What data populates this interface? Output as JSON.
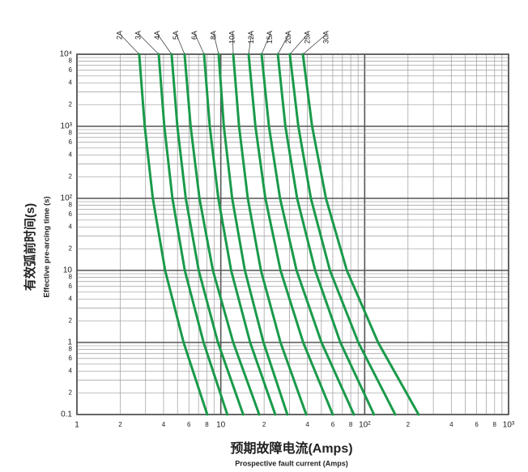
{
  "chart_data": {
    "type": "line",
    "x_label": "预期故障电流(Amps)",
    "x_label_en": "Prospective fault current (Amps)",
    "y_label": "有效弧前时间(s)",
    "y_label_en": "Effective pre-arcing time (s)",
    "log_x": true,
    "log_y": true,
    "grid": true,
    "xlim": [
      1,
      1000
    ],
    "ylim": [
      0.1,
      10000
    ],
    "xticks": [
      1,
      2,
      4,
      6,
      8,
      10,
      {
        "value": 20,
        "label": "2"
      },
      {
        "value": 40,
        "label": "4"
      },
      {
        "value": 60,
        "label": "6"
      },
      {
        "value": 80,
        "label": "8"
      },
      {
        "value": 100,
        "label": "10²"
      },
      {
        "value": 200,
        "label": "2"
      },
      {
        "value": 400,
        "label": "4"
      },
      {
        "value": 600,
        "label": "6"
      },
      {
        "value": 800,
        "label": "8"
      },
      {
        "value": 1000,
        "label": "10³"
      }
    ],
    "xminor": [
      3,
      5,
      7,
      9,
      30,
      50,
      70,
      90,
      300,
      500,
      700,
      900
    ],
    "yticks": [
      0.1,
      {
        "value": 0.2,
        "label": "2"
      },
      {
        "value": 0.4,
        "label": "4"
      },
      {
        "value": 0.6,
        "label": "6"
      },
      {
        "value": 0.8,
        "label": "8"
      },
      1,
      2,
      4,
      6,
      8,
      10,
      {
        "value": 20,
        "label": "2"
      },
      {
        "value": 40,
        "label": "4"
      },
      {
        "value": 60,
        "label": "6"
      },
      {
        "value": 80,
        "label": "8"
      },
      {
        "value": 100,
        "label": "10²"
      },
      {
        "value": 200,
        "label": "2"
      },
      {
        "value": 400,
        "label": "4"
      },
      {
        "value": 600,
        "label": "6"
      },
      {
        "value": 800,
        "label": "8"
      },
      {
        "value": 1000,
        "label": "10³"
      },
      {
        "value": 2000,
        "label": "2"
      },
      {
        "value": 4000,
        "label": "4"
      },
      {
        "value": 6000,
        "label": "6"
      },
      {
        "value": 8000,
        "label": "8"
      },
      {
        "value": 10000,
        "label": "10⁴"
      }
    ],
    "yminor": [
      0.3,
      0.5,
      0.7,
      0.9,
      3,
      5,
      7,
      9,
      30,
      50,
      70,
      90,
      300,
      500,
      700,
      900,
      3000,
      5000,
      7000,
      9000
    ],
    "series": [
      {
        "name": "2A",
        "color": "#1a9a4a",
        "x": [
          2.71,
          2.96,
          3.37,
          4.1,
          5.51,
          8.05
        ],
        "values": [
          10000,
          1000,
          100,
          10,
          1,
          0.1
        ]
      },
      {
        "name": "3A",
        "color": "#1a9a4a",
        "x": [
          3.7,
          4.05,
          4.61,
          5.62,
          7.59,
          11.1
        ],
        "values": [
          10000,
          1000,
          100,
          10,
          1,
          0.1
        ]
      },
      {
        "name": "4A",
        "color": "#1a9a4a",
        "x": [
          4.55,
          4.99,
          5.71,
          7.02,
          9.55,
          14.3
        ],
        "values": [
          10000,
          1000,
          100,
          10,
          1,
          0.1
        ]
      },
      {
        "name": "5A",
        "color": "#1a9a4a",
        "x": [
          5.6,
          6.17,
          7.11,
          8.81,
          12.2,
          18.5
        ],
        "values": [
          10000,
          1000,
          100,
          10,
          1,
          0.1
        ]
      },
      {
        "name": "6A",
        "color": "#1a9a4a",
        "x": [
          7.65,
          8.38,
          9.61,
          11.8,
          16,
          23.9
        ],
        "values": [
          10000,
          1000,
          100,
          10,
          1,
          0.1
        ]
      },
      {
        "name": "8A",
        "color": "#1a9a4a",
        "x": [
          9.66,
          10.5,
          12,
          14.7,
          19.8,
          29
        ],
        "values": [
          10000,
          1000,
          100,
          10,
          1,
          0.1
        ]
      },
      {
        "name": "10A",
        "color": "#1a9a4a",
        "x": [
          12.2,
          13.4,
          15.4,
          19,
          26,
          39.2
        ],
        "values": [
          10000,
          1000,
          100,
          10,
          1,
          0.1
        ]
      },
      {
        "name": "12A",
        "color": "#1a9a4a",
        "x": [
          15.6,
          17.4,
          20.4,
          26,
          37.4,
          60
        ],
        "values": [
          10000,
          1000,
          100,
          10,
          1,
          0.1
        ]
      },
      {
        "name": "15A",
        "color": "#1a9a4a",
        "x": [
          19.2,
          21.6,
          25.8,
          33.6,
          50.1,
          84.1
        ],
        "values": [
          10000,
          1000,
          100,
          10,
          1,
          0.1
        ]
      },
      {
        "name": "20A",
        "color": "#1a9a4a",
        "x": [
          24.9,
          28.1,
          33.9,
          45.3,
          67.8,
          116
        ],
        "values": [
          10000,
          1000,
          100,
          10,
          1,
          0.1
        ]
      },
      {
        "name": "25A",
        "color": "#1a9a4a",
        "x": [
          30.2,
          34.6,
          42.3,
          57.3,
          90.3,
          163
        ],
        "values": [
          10000,
          1000,
          100,
          10,
          1,
          0.1
        ]
      },
      {
        "name": "30A",
        "color": "#1a9a4a",
        "x": [
          37.2,
          43.1,
          53.8,
          75.2,
          124,
          237
        ],
        "values": [
          10000,
          1000,
          100,
          10,
          1,
          0.1
        ]
      }
    ]
  }
}
